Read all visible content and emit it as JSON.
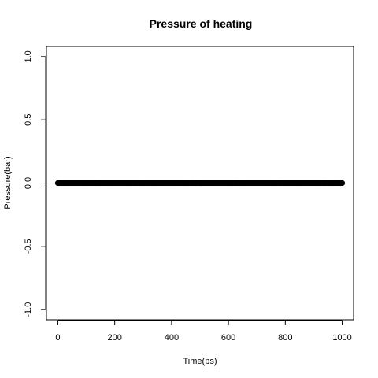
{
  "chart_data": {
    "type": "scatter",
    "title": "Pressure of heating",
    "xlabel": "Time(ps)",
    "ylabel": "Pressure(bar)",
    "xlim": [
      -40,
      1040
    ],
    "ylim": [
      -1.08,
      1.08
    ],
    "xticks": [
      0,
      200,
      400,
      600,
      800,
      1000
    ],
    "yticks": [
      -1.0,
      -0.5,
      0.0,
      0.5,
      1.0
    ],
    "xtick_labels": [
      "0",
      "200",
      "400",
      "600",
      "800",
      "1000"
    ],
    "ytick_labels": [
      "-1.0",
      "-0.5",
      "0.0",
      "0.5",
      "1.0"
    ],
    "series": [
      {
        "x_start": 0,
        "x_end": 1000,
        "x_step": 5,
        "y": 0.0
      }
    ],
    "point_color": "#000000",
    "grid": false
  }
}
